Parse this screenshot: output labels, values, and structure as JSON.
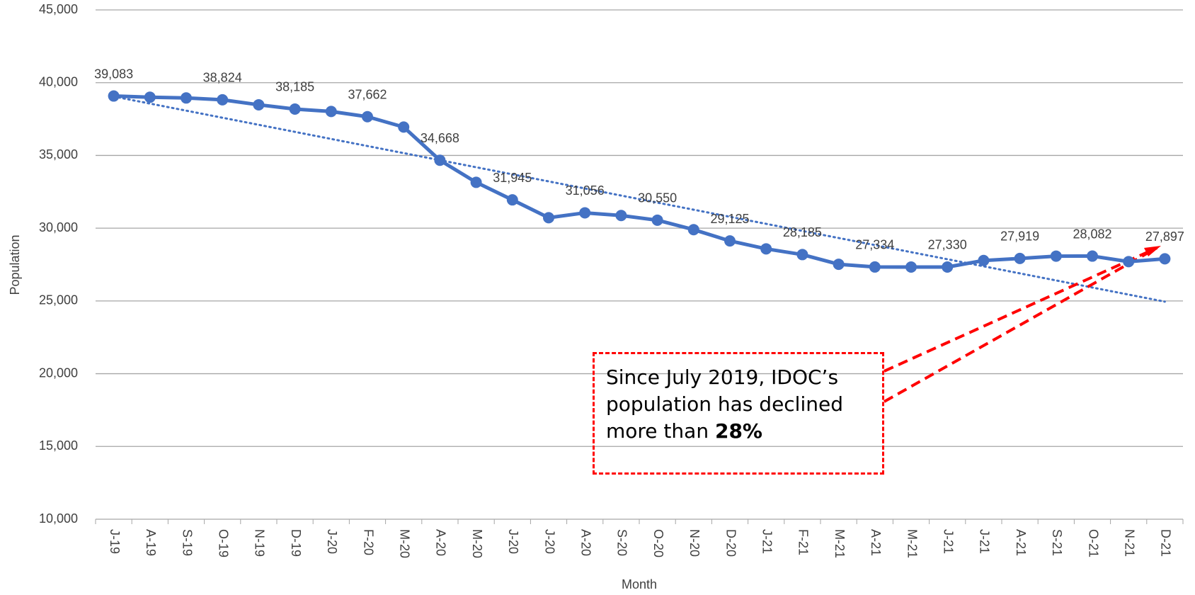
{
  "chart_data": {
    "type": "line",
    "x_label": "Month",
    "y_label": "Population",
    "categories": [
      "J-19",
      "A-19",
      "S-19",
      "O-19",
      "N-19",
      "D-19",
      "J-20",
      "F-20",
      "M-20",
      "A-20",
      "M-20",
      "J-20",
      "J-20",
      "A-20",
      "S-20",
      "O-20",
      "N-20",
      "D-20",
      "J-21",
      "F-21",
      "M-21",
      "A-21",
      "M-21",
      "J-21",
      "J-21",
      "A-21",
      "S-21",
      "O-21",
      "N-21",
      "D-21"
    ],
    "series": [
      {
        "color": "#4472c4",
        "values": [
          39083,
          39000,
          38950,
          38824,
          38480,
          38185,
          38020,
          37662,
          36950,
          34668,
          33150,
          31945,
          30720,
          31056,
          30870,
          30550,
          29900,
          29125,
          28580,
          28185,
          27520,
          27334,
          27330,
          27330,
          27780,
          27919,
          28080,
          28082,
          27700,
          27897
        ],
        "value_labels": [
          "39,083",
          null,
          null,
          "38,824",
          null,
          "38,185",
          null,
          "37,662",
          null,
          "34,668",
          null,
          "31,945",
          null,
          "31,056",
          null,
          "30,550",
          null,
          "29,125",
          null,
          "28,185",
          null,
          "27,334",
          null,
          "27,330",
          null,
          "27,919",
          null,
          "28,082",
          null,
          "27,897"
        ]
      }
    ],
    "trendline": {
      "color": "#4472c4",
      "start": 39050,
      "end": 24950
    },
    "ylim": [
      10000,
      45000
    ],
    "yticks": [
      {
        "value": 10000,
        "label": "10,000"
      },
      {
        "value": 15000,
        "label": "15,000"
      },
      {
        "value": 20000,
        "label": "20,000"
      },
      {
        "value": 25000,
        "label": "25,000"
      },
      {
        "value": 30000,
        "label": "30,000"
      },
      {
        "value": 35000,
        "label": "35,000"
      },
      {
        "value": 40000,
        "label": "40,000"
      },
      {
        "value": 45000,
        "label": "45,000"
      }
    ],
    "grid": true,
    "annotation": {
      "text": "Since July 2019, IDOC’s population has declined more than ",
      "bold": "28%",
      "color": "#ff0000"
    }
  }
}
